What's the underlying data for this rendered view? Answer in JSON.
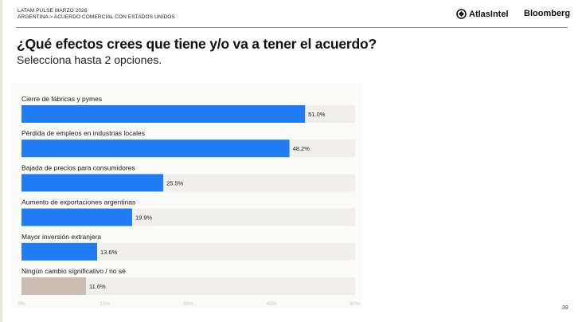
{
  "header": {
    "report_title": "LATAM PULSE MARZO 2026",
    "breadcrumb": "ARGENTINA > ACUERDO COMERCIAL CON ESTADOS UNIDOS",
    "brand_atlas": "AtlasIntel",
    "brand_bloomberg": "Bloomberg"
  },
  "question": {
    "title": "¿Qué efectos crees que tiene y/o va a tener el acuerdo?",
    "subtitle": "Selecciona hasta 2 opciones."
  },
  "footer": {
    "page_number": "39"
  },
  "colors": {
    "primary_bar": "#1f7cf2",
    "neutral_bar": "#c9bcb3",
    "track": "#f0efec"
  },
  "chart_data": {
    "type": "bar",
    "orientation": "horizontal",
    "categories": [
      "Cierre de fábricas y pymes",
      "Pérdida de empleos en industrias locales",
      "Bajada de precios para consumidores",
      "Aumento de exportaciones argentinas",
      "Mayor inversión extranjera",
      "Ningún cambio significativo / no sé"
    ],
    "values": [
      51.0,
      48.2,
      25.5,
      19.9,
      13.6,
      11.6
    ],
    "value_labels": [
      "51.0%",
      "48.2%",
      "25.5%",
      "19.9%",
      "13.6%",
      "11.6%"
    ],
    "bar_colors": [
      "#1f7cf2",
      "#1f7cf2",
      "#1f7cf2",
      "#1f7cf2",
      "#1f7cf2",
      "#c9bcb3"
    ],
    "xlim": [
      0,
      60
    ],
    "x_ticks": [
      0,
      15,
      30,
      45,
      60
    ],
    "x_tick_labels": [
      "0%",
      "15%",
      "30%",
      "45%",
      "60%"
    ],
    "grid": false,
    "legend": "none"
  }
}
